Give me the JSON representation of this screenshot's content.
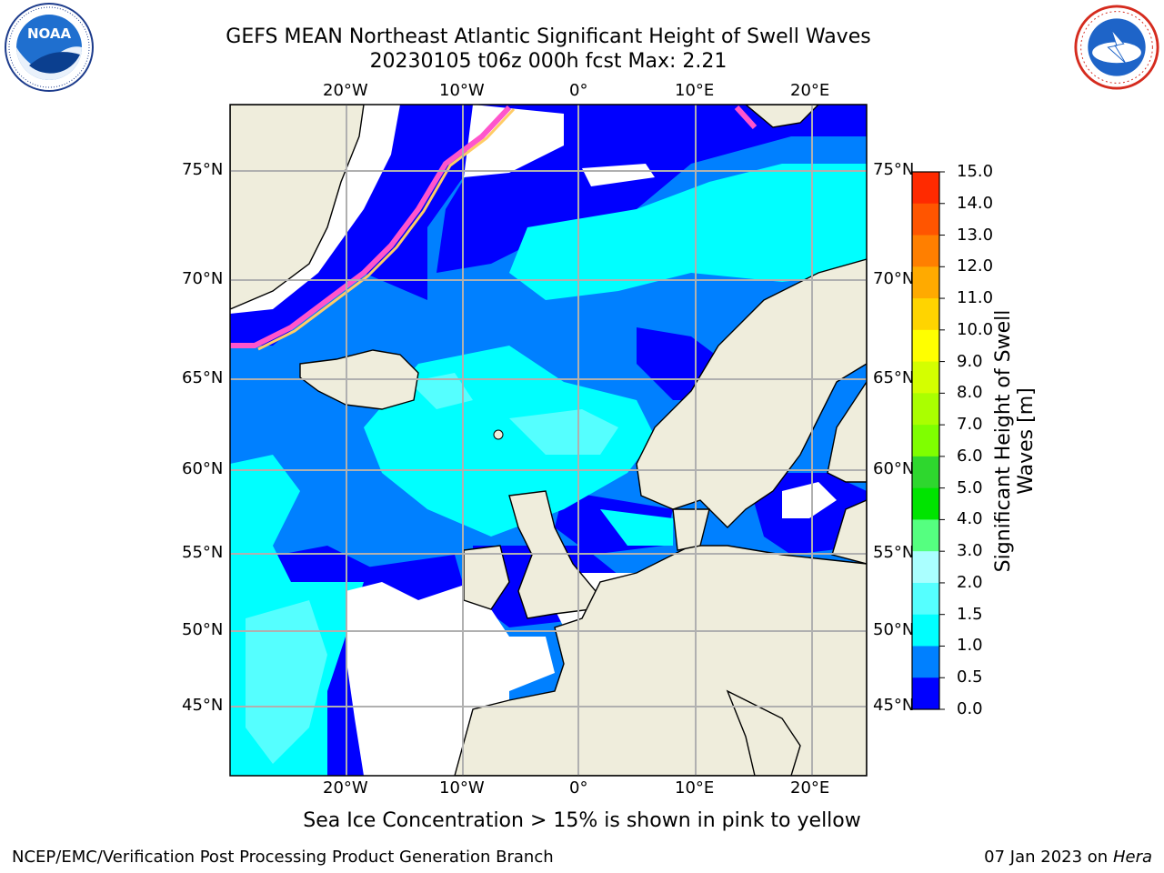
{
  "title": {
    "line1": "GEFS MEAN Northeast Atlantic Significant Height of Swell Waves",
    "line2": "20230105 t06z 000h fcst   Max: 2.21"
  },
  "logos": {
    "left": "noaa-logo",
    "right": "national-weather-service-logo"
  },
  "map": {
    "lon_labels": [
      "20°W",
      "10°W",
      "0°",
      "10°E",
      "20°E"
    ],
    "lat_labels_left": [
      "75°N",
      "70°N",
      "65°N",
      "60°N",
      "55°N",
      "50°N",
      "45°N"
    ],
    "lat_labels_right": [
      "75°N",
      "70°N",
      "65°N",
      "60°N",
      "55°N",
      "50°N",
      "45°N"
    ],
    "colors": {
      "land": "#efeddc",
      "ice_mask": "#ffffff",
      "grid": "#b0b0b0",
      "coast": "#000000"
    }
  },
  "colorbar": {
    "label": "Significant Height of Swell Waves [m]",
    "ticks": [
      "15.0",
      "14.0",
      "13.0",
      "12.0",
      "11.0",
      "10.0",
      "9.0",
      "8.0",
      "7.0",
      "6.0",
      "5.0",
      "4.0",
      "3.0",
      "2.0",
      "1.5",
      "1.0",
      "0.5",
      "0.0"
    ],
    "levels": [
      {
        "color": "#ff0000"
      },
      {
        "color": "#ff2a00"
      },
      {
        "color": "#ff5500"
      },
      {
        "color": "#ff7f00"
      },
      {
        "color": "#ffaa00"
      },
      {
        "color": "#ffd400"
      },
      {
        "color": "#ffff00"
      },
      {
        "color": "#d4ff00"
      },
      {
        "color": "#aaff00"
      },
      {
        "color": "#7fff00"
      },
      {
        "color": "#2ed72e"
      },
      {
        "color": "#00e400"
      },
      {
        "color": "#55ff80"
      },
      {
        "color": "#aaffff"
      },
      {
        "color": "#55ffff"
      },
      {
        "color": "#00ffff"
      },
      {
        "color": "#0080ff"
      },
      {
        "color": "#0000ff"
      }
    ]
  },
  "note": "Sea Ice Concentration > 15% is shown in pink to yellow",
  "footer": {
    "left": "NCEP/EMC/Verification Post Processing Product Generation Branch",
    "date": "07 Jan 2023 on ",
    "host": "Hera"
  }
}
